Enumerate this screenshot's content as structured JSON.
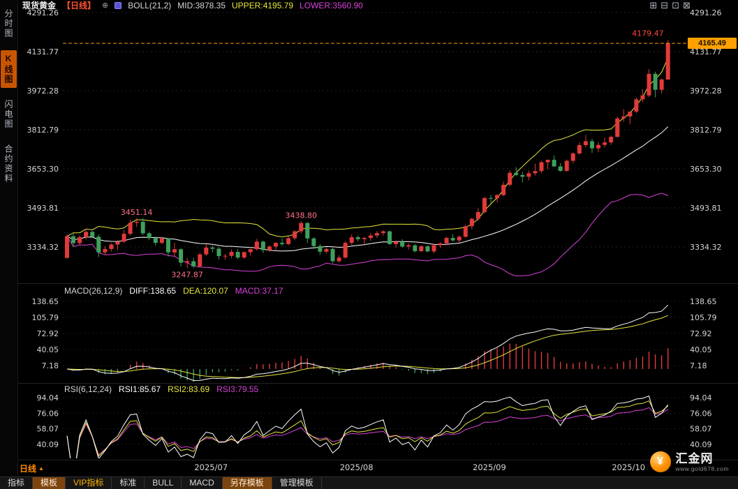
{
  "sidebar": {
    "tabs": [
      {
        "id": "timeshare",
        "label": "分时图",
        "active": false
      },
      {
        "id": "kline",
        "label": "K线图",
        "active": true
      },
      {
        "id": "lightning",
        "label": "闪电图",
        "active": false
      },
      {
        "id": "contract",
        "label": "合约资料",
        "active": false
      }
    ]
  },
  "header": {
    "symbol": "现货黄金",
    "period": "【日线】",
    "plus_glyph": "⊕",
    "boll_label": "BOLL(21,2)",
    "mid": "MID:3878.35",
    "upper": "UPPER:4195.79",
    "lower": "LOWER:3560.90"
  },
  "window_controls": [
    {
      "id": "layout-grid",
      "glyph": "⊞"
    },
    {
      "id": "layout-rows",
      "glyph": "⊟"
    },
    {
      "id": "layout-single",
      "glyph": "⊡"
    },
    {
      "id": "layout-popout",
      "glyph": "⊠"
    }
  ],
  "macd_header": {
    "label": "MACD(26,12,9)",
    "diff": "DIFF:138.65",
    "dea": "DEA:120.07",
    "macd": "MACD:37.17"
  },
  "rsi_header": {
    "label": "RSI(6,12,24)",
    "rsi1": "RSI1:85.67",
    "rsi2": "RSI2:83.69",
    "rsi3": "RSI3:79.55"
  },
  "price_tag": "4165.49",
  "period_pill": {
    "label": "日线",
    "arrow": "▲"
  },
  "toolbar": {
    "items": [
      {
        "id": "indicators",
        "label": "指标",
        "style": "plain"
      },
      {
        "id": "template",
        "label": "模板",
        "style": "selected"
      },
      {
        "id": "vip-indicators",
        "label": "VIP指标",
        "style": "vip"
      },
      {
        "id": "standard",
        "label": "标准",
        "style": "plain"
      },
      {
        "id": "bull",
        "label": "BULL",
        "style": "plain"
      },
      {
        "id": "macd",
        "label": "MACD",
        "style": "plain"
      },
      {
        "id": "save-template",
        "label": "另存模板",
        "style": "selected"
      },
      {
        "id": "manage-template",
        "label": "管理模板",
        "style": "plain"
      }
    ]
  },
  "logo": {
    "title": "汇金网",
    "subtitle": "www.gold678.com",
    "glyph": "¥"
  },
  "chart_data": {
    "type": "candlestick",
    "symbol": "现货黄金",
    "interval": "日线",
    "price_panel": {
      "y_ticks": [
        4291.26,
        4131.77,
        3972.28,
        3812.79,
        3653.3,
        3493.81,
        3334.32
      ],
      "x_ticks": [
        {
          "label": "2025/07",
          "index": 21
        },
        {
          "label": "2025/08",
          "index": 44
        },
        {
          "label": "2025/09",
          "index": 65
        },
        {
          "label": "2025/10",
          "index": 87
        }
      ],
      "last_close": 4165.49,
      "boll": {
        "period": 21,
        "width": 2,
        "mid": 3878.35,
        "upper": 4195.79,
        "lower": 3560.9
      },
      "annotations": [
        {
          "text": "3451.14",
          "index": 11,
          "side": "above",
          "color": "#ff7288"
        },
        {
          "text": "3438.80",
          "index": 37,
          "side": "above",
          "color": "#ff7288"
        },
        {
          "text": "3247.87",
          "index": 19,
          "side": "below",
          "color": "#ff7288"
        },
        {
          "text": "4179.47",
          "index": 95,
          "side": "above-left",
          "color": "#ff4a3c"
        }
      ],
      "candles": [
        [
          3290,
          3385,
          3285,
          3378
        ],
        [
          3378,
          3390,
          3333,
          3350
        ],
        [
          3350,
          3382,
          3340,
          3374
        ],
        [
          3374,
          3403,
          3365,
          3396
        ],
        [
          3396,
          3400,
          3370,
          3376
        ],
        [
          3376,
          3386,
          3293,
          3312
        ],
        [
          3312,
          3338,
          3302,
          3326
        ],
        [
          3326,
          3350,
          3316,
          3344
        ],
        [
          3344,
          3362,
          3322,
          3356
        ],
        [
          3356,
          3404,
          3350,
          3388
        ],
        [
          3388,
          3446,
          3381,
          3433
        ],
        [
          3433,
          3451.14,
          3416,
          3437
        ],
        [
          3437,
          3452,
          3383,
          3390
        ],
        [
          3390,
          3397,
          3363,
          3370
        ],
        [
          3370,
          3378,
          3340,
          3351
        ],
        [
          3351,
          3375,
          3345,
          3369
        ],
        [
          3369,
          3372,
          3295,
          3312
        ],
        [
          3312,
          3351,
          3296,
          3325
        ],
        [
          3325,
          3329,
          3255,
          3270
        ],
        [
          3270,
          3289,
          3247.87,
          3276
        ],
        [
          3276,
          3290,
          3248,
          3255
        ],
        [
          3255,
          3311,
          3250,
          3304
        ],
        [
          3304,
          3346,
          3297,
          3332
        ],
        [
          3332,
          3340,
          3312,
          3327
        ],
        [
          3327,
          3334,
          3283,
          3297
        ],
        [
          3297,
          3306,
          3282,
          3298
        ],
        [
          3298,
          3325,
          3288,
          3314
        ],
        [
          3314,
          3326,
          3284,
          3291
        ],
        [
          3291,
          3316,
          3286,
          3313
        ],
        [
          3313,
          3328,
          3299,
          3325
        ],
        [
          3325,
          3367,
          3320,
          3356
        ],
        [
          3356,
          3360,
          3309,
          3321
        ],
        [
          3321,
          3341,
          3314,
          3336
        ],
        [
          3336,
          3353,
          3321,
          3351
        ],
        [
          3351,
          3369,
          3339,
          3346
        ],
        [
          3346,
          3378,
          3342,
          3370
        ],
        [
          3370,
          3402,
          3362,
          3398
        ],
        [
          3398,
          3438.8,
          3388,
          3432
        ],
        [
          3432,
          3436,
          3350,
          3369
        ],
        [
          3369,
          3375,
          3326,
          3338
        ],
        [
          3338,
          3346,
          3302,
          3315
        ],
        [
          3315,
          3331,
          3307,
          3326
        ],
        [
          3326,
          3332,
          3268,
          3276
        ],
        [
          3276,
          3301,
          3271,
          3291
        ],
        [
          3291,
          3357,
          3286,
          3351
        ],
        [
          3351,
          3386,
          3343,
          3374
        ],
        [
          3374,
          3381,
          3356,
          3366
        ],
        [
          3366,
          3376,
          3346,
          3371
        ],
        [
          3371,
          3391,
          3359,
          3381
        ],
        [
          3381,
          3399,
          3371,
          3391
        ],
        [
          3391,
          3403,
          3381,
          3398
        ],
        [
          3398,
          3401,
          3342,
          3346
        ],
        [
          3346,
          3361,
          3332,
          3356
        ],
        [
          3356,
          3366,
          3331,
          3336
        ],
        [
          3336,
          3349,
          3324,
          3341
        ],
        [
          3341,
          3346,
          3312,
          3317
        ],
        [
          3317,
          3341,
          3313,
          3337
        ],
        [
          3337,
          3341,
          3313,
          3316
        ],
        [
          3316,
          3349,
          3309,
          3341
        ],
        [
          3341,
          3353,
          3331,
          3349
        ],
        [
          3349,
          3376,
          3341,
          3371
        ],
        [
          3371,
          3386,
          3356,
          3361
        ],
        [
          3361,
          3381,
          3351,
          3376
        ],
        [
          3376,
          3424,
          3371,
          3419
        ],
        [
          3419,
          3454,
          3406,
          3449
        ],
        [
          3449,
          3491,
          3441,
          3477
        ],
        [
          3477,
          3540,
          3471,
          3534
        ],
        [
          3534,
          3547,
          3512,
          3533
        ],
        [
          3533,
          3551,
          3516,
          3546
        ],
        [
          3546,
          3601,
          3541,
          3588
        ],
        [
          3588,
          3647,
          3581,
          3637
        ],
        [
          3637,
          3660,
          3623,
          3628
        ],
        [
          3628,
          3641,
          3598,
          3621
        ],
        [
          3621,
          3646,
          3606,
          3635
        ],
        [
          3635,
          3674,
          3626,
          3644
        ],
        [
          3644,
          3686,
          3636,
          3680
        ],
        [
          3680,
          3691,
          3651,
          3690
        ],
        [
          3690,
          3708,
          3661,
          3663
        ],
        [
          3663,
          3676,
          3641,
          3645
        ],
        [
          3645,
          3691,
          3641,
          3686
        ],
        [
          3686,
          3721,
          3676,
          3716
        ],
        [
          3716,
          3761,
          3711,
          3750
        ],
        [
          3750,
          3792,
          3741,
          3766
        ],
        [
          3766,
          3776,
          3718,
          3737
        ],
        [
          3737,
          3763,
          3721,
          3751
        ],
        [
          3751,
          3781,
          3741,
          3761
        ],
        [
          3761,
          3789,
          3751,
          3784
        ],
        [
          3784,
          3867,
          3781,
          3859
        ],
        [
          3859,
          3897,
          3846,
          3867
        ],
        [
          3867,
          3888,
          3836,
          3887
        ],
        [
          3887,
          3945,
          3881,
          3937
        ],
        [
          3937,
          3978,
          3926,
          3953
        ],
        [
          3953,
          4060,
          3946,
          4041
        ],
        [
          4041,
          4050,
          3945,
          3976
        ],
        [
          3976,
          4022,
          3961,
          4018
        ],
        [
          4018,
          4179.47,
          4016,
          4165.49
        ]
      ]
    },
    "macd_panel": {
      "params": [
        26,
        12,
        9
      ],
      "diff": 138.65,
      "dea": 120.07,
      "macd": 37.17,
      "y_ticks": [
        138.65,
        105.79,
        72.92,
        40.05,
        7.18
      ]
    },
    "rsi_panel": {
      "params": [
        6,
        12,
        24
      ],
      "rsi1": 85.67,
      "rsi2": 83.69,
      "rsi3": 79.55,
      "y_ticks": [
        94.04,
        76.06,
        58.07,
        40.09
      ]
    },
    "colors": {
      "up": "#e23a3a",
      "down": "#3fa05c",
      "boll_mid": "#ffffff",
      "boll_upper": "#e6e63c",
      "boll_lower": "#d943d9",
      "diff_line": "#ffffff",
      "dea_line": "#e6e63c",
      "rsi1_line": "#ffffff",
      "rsi2_line": "#e6e63c",
      "rsi3_line": "#d943d9",
      "last_price_line": "#ff9800",
      "tag_bg": "#ffa000",
      "annotation_pink": "#ff7288",
      "annotation_red": "#ff4a3c"
    }
  }
}
